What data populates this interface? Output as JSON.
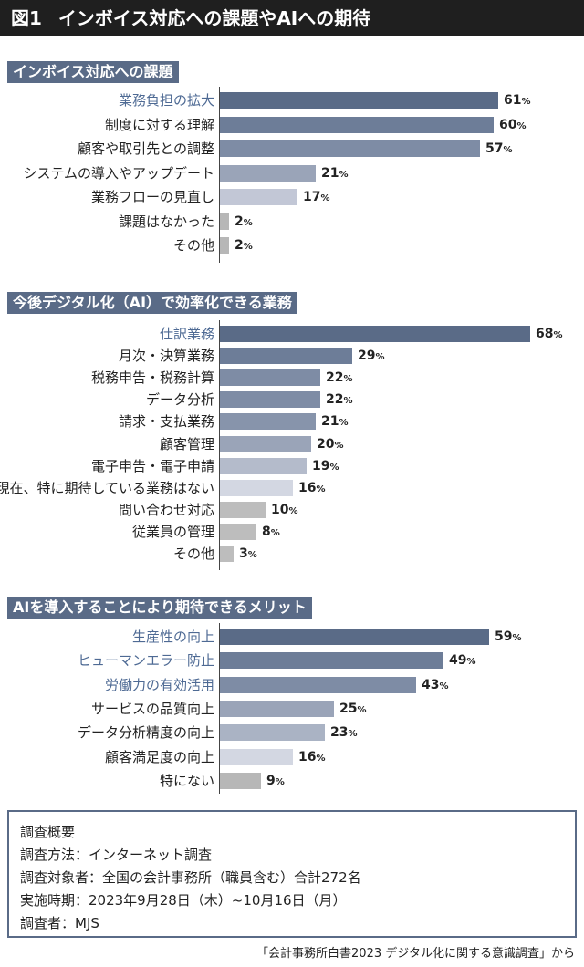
{
  "title": {
    "fig": "図1",
    "text": "インボイス対応への課題やAIへの期待"
  },
  "chart_data": [
    {
      "type": "bar",
      "orientation": "horizontal",
      "title": "インボイス対応への課題",
      "unit": "%",
      "xlim": [
        0,
        70
      ],
      "categories": [
        "業務負担の拡大",
        "制度に対する理解",
        "顧客や取引先との調整",
        "システムの導入やアップデート",
        "業務フローの見直し",
        "課題はなかった",
        "その他"
      ],
      "values": [
        61,
        60,
        57,
        21,
        17,
        2,
        2
      ],
      "highlighted": [
        0
      ],
      "colors": [
        "#5a6b87",
        "#6d7d98",
        "#7e8ca5",
        "#9aa4b8",
        "#c2c7d6",
        "#b7b7b7",
        "#b7b7b7"
      ]
    },
    {
      "type": "bar",
      "orientation": "horizontal",
      "title": "今後デジタル化（AI）で効率化できる業務",
      "unit": "%",
      "xlim": [
        0,
        70
      ],
      "categories": [
        "仕訳業務",
        "月次・決算業務",
        "税務申告・税務計算",
        "データ分析",
        "請求・支払業務",
        "顧客管理",
        "電子申告・電子申請",
        "現在、特に期待している業務はない",
        "問い合わせ対応",
        "従業員の管理",
        "その他"
      ],
      "values": [
        68,
        29,
        22,
        22,
        21,
        20,
        19,
        16,
        10,
        8,
        3
      ],
      "highlighted": [
        0
      ],
      "colors": [
        "#5a6b87",
        "#6d7d98",
        "#7e8ca5",
        "#7e8ca5",
        "#8794ab",
        "#9aa4b8",
        "#b4bbcb",
        "#d3d7e2",
        "#bdbdbd",
        "#bdbdbd",
        "#bdbdbd"
      ]
    },
    {
      "type": "bar",
      "orientation": "horizontal",
      "title": "AIを導入することにより期待できるメリット",
      "unit": "%",
      "xlim": [
        0,
        70
      ],
      "categories": [
        "生産性の向上",
        "ヒューマンエラー防止",
        "労働力の有効活用",
        "サービスの品質向上",
        "データ分析精度の向上",
        "顧客満足度の向上",
        "特にない"
      ],
      "values": [
        59,
        49,
        43,
        25,
        23,
        16,
        9
      ],
      "highlighted": [
        0,
        1,
        2
      ],
      "colors": [
        "#5a6b87",
        "#6d7d98",
        "#7e8ca5",
        "#9aa4b8",
        "#aab3c4",
        "#d3d7e2",
        "#b7b7b7"
      ]
    }
  ],
  "survey": {
    "heading": "調査概要",
    "method": "調査方法：インターネット調査",
    "target": "調査対象者：全国の会計事務所（職員含む）合計272名",
    "period": "実施時期：2023年9月28日（木）~10月16日（月）",
    "surveyor": "調査者：MJS"
  },
  "source": "「会計事務所白書2023 デジタル化に関する意識調査」から"
}
